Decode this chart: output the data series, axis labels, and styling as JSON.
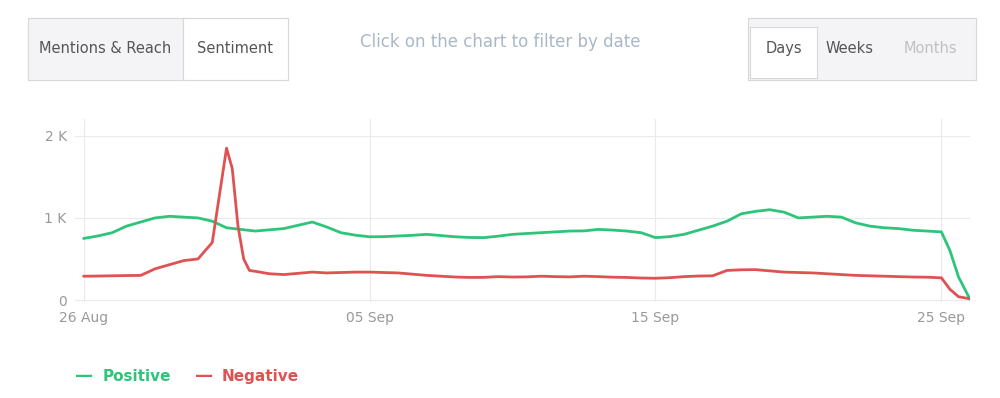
{
  "title": "Click on the chart to filter by date",
  "title_color": "#a8b8c8",
  "title_fontsize": 12,
  "bg_color": "#ffffff",
  "plot_bg_color": "#ffffff",
  "grid_color": "#e8eaed",
  "positive_color": "#2ec47a",
  "negative_color": "#e05252",
  "positive_label": "Positive",
  "negative_label": "Negative",
  "ytick_labels": [
    "0",
    "1 K",
    "2 K"
  ],
  "ytick_values": [
    0,
    1000,
    2000
  ],
  "ylim": [
    -30,
    2200
  ],
  "xtick_labels": [
    "26 Aug",
    "05 Sep",
    "15 Sep",
    "25 Sep"
  ],
  "xtick_positions": [
    0,
    10,
    20,
    30
  ],
  "xlim": [
    -0.3,
    31
  ],
  "positive_x": [
    0,
    0.5,
    1,
    1.5,
    2,
    2.5,
    3,
    3.5,
    4,
    4.5,
    5,
    5.5,
    6,
    6.5,
    7,
    7.5,
    8,
    8.5,
    9,
    9.5,
    10,
    10.5,
    11,
    11.5,
    12,
    12.5,
    13,
    13.5,
    14,
    14.5,
    15,
    15.5,
    16,
    16.5,
    17,
    17.5,
    18,
    18.5,
    19,
    19.5,
    20,
    20.5,
    21,
    21.5,
    22,
    22.5,
    23,
    23.5,
    24,
    24.5,
    25,
    25.5,
    26,
    26.5,
    27,
    27.5,
    28,
    28.5,
    29,
    29.5,
    30,
    30.3,
    30.6,
    31
  ],
  "positive_y": [
    750,
    780,
    820,
    900,
    950,
    1000,
    1020,
    1010,
    1000,
    960,
    880,
    860,
    840,
    855,
    870,
    910,
    950,
    890,
    820,
    790,
    770,
    772,
    780,
    788,
    800,
    785,
    770,
    762,
    760,
    778,
    800,
    810,
    820,
    830,
    840,
    842,
    860,
    852,
    840,
    820,
    760,
    772,
    800,
    850,
    900,
    960,
    1050,
    1080,
    1100,
    1070,
    1000,
    1010,
    1020,
    1010,
    940,
    900,
    880,
    870,
    850,
    840,
    830,
    600,
    280,
    10
  ],
  "negative_x": [
    0,
    0.5,
    1,
    1.5,
    2,
    2.5,
    3,
    3.5,
    4,
    4.5,
    5,
    5.2,
    5.4,
    5.6,
    5.8,
    6,
    6.5,
    7,
    7.5,
    8,
    8.5,
    9,
    9.5,
    10,
    10.5,
    11,
    11.5,
    12,
    12.5,
    13,
    13.5,
    14,
    14.5,
    15,
    15.5,
    16,
    16.5,
    17,
    17.5,
    18,
    18.5,
    19,
    19.5,
    20,
    20.5,
    21,
    21.5,
    22,
    22.5,
    23,
    23.5,
    24,
    24.5,
    25,
    25.5,
    26,
    26.5,
    27,
    27.5,
    28,
    28.5,
    29,
    29.5,
    30,
    30.3,
    30.6,
    31
  ],
  "negative_y": [
    290,
    292,
    295,
    298,
    300,
    380,
    430,
    480,
    500,
    700,
    1850,
    1600,
    900,
    500,
    360,
    350,
    320,
    310,
    325,
    340,
    330,
    335,
    340,
    340,
    335,
    330,
    315,
    300,
    290,
    280,
    275,
    276,
    285,
    280,
    282,
    290,
    285,
    282,
    290,
    285,
    278,
    275,
    268,
    265,
    272,
    285,
    292,
    295,
    360,
    368,
    370,
    355,
    340,
    335,
    330,
    320,
    310,
    300,
    295,
    290,
    285,
    280,
    278,
    270,
    130,
    40,
    15
  ],
  "tab_labels": [
    "Mentions & Reach",
    "Sentiment"
  ],
  "time_labels": [
    "Days",
    "Weeks",
    "Months"
  ],
  "line_width": 2.0,
  "tab_bg_selected": "#f4f4f6",
  "tab_bg_unselected": "#ffffff",
  "tab_border_color": "#d8d8d8",
  "tab_text_color": "#555555",
  "months_text_color": "#c0c0c0"
}
